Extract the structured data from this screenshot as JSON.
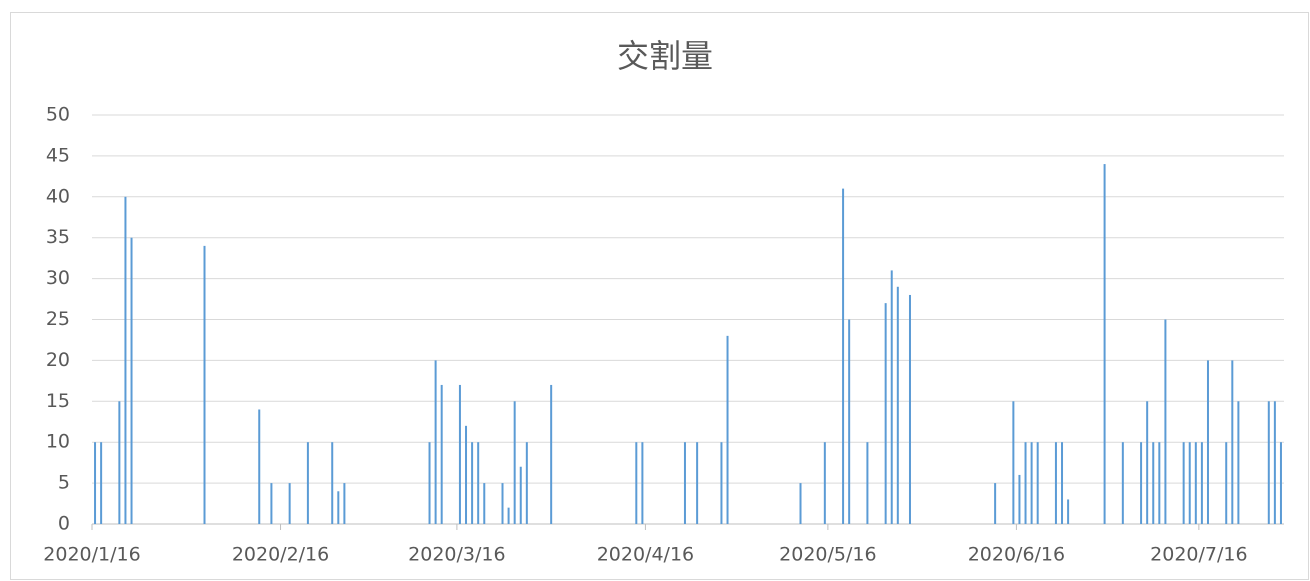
{
  "chart_data": {
    "type": "bar",
    "title": "交割量",
    "x": [
      "2020/1/16",
      "2020/1/17",
      "2020/1/20",
      "2020/1/21",
      "2020/1/22",
      "2020/2/3",
      "2020/2/12",
      "2020/2/14",
      "2020/2/17",
      "2020/2/20",
      "2020/2/24",
      "2020/2/25",
      "2020/2/26",
      "2020/3/11",
      "2020/3/12",
      "2020/3/13",
      "2020/3/16",
      "2020/3/17",
      "2020/3/18",
      "2020/3/19",
      "2020/3/20",
      "2020/3/23",
      "2020/3/24",
      "2020/3/25",
      "2020/3/26",
      "2020/3/27",
      "2020/3/31",
      "2020/4/14",
      "2020/4/15",
      "2020/4/22",
      "2020/4/24",
      "2020/4/28",
      "2020/4/29",
      "2020/5/11",
      "2020/5/15",
      "2020/5/18",
      "2020/5/19",
      "2020/5/22",
      "2020/5/25",
      "2020/5/26",
      "2020/5/27",
      "2020/5/29",
      "2020/6/12",
      "2020/6/15",
      "2020/6/16",
      "2020/6/17",
      "2020/6/18",
      "2020/6/19",
      "2020/6/22",
      "2020/6/23",
      "2020/6/24",
      "2020/6/30",
      "2020/7/3",
      "2020/7/6",
      "2020/7/7",
      "2020/7/8",
      "2020/7/9",
      "2020/7/10",
      "2020/7/13",
      "2020/7/14",
      "2020/7/15",
      "2020/7/16",
      "2020/7/17",
      "2020/7/20",
      "2020/7/21",
      "2020/7/22",
      "2020/7/27",
      "2020/7/28",
      "2020/7/29"
    ],
    "values": [
      10,
      10,
      15,
      40,
      35,
      34,
      14,
      5,
      5,
      10,
      10,
      4,
      5,
      10,
      20,
      17,
      17,
      12,
      10,
      10,
      5,
      5,
      2,
      15,
      7,
      10,
      17,
      10,
      10,
      10,
      10,
      10,
      23,
      5,
      10,
      41,
      25,
      10,
      27,
      31,
      29,
      28,
      5,
      15,
      6,
      10,
      10,
      10,
      10,
      10,
      3,
      44,
      10,
      10,
      15,
      10,
      10,
      25,
      10,
      10,
      10,
      10,
      20,
      10,
      20,
      15,
      15,
      15,
      10
    ],
    "color": "#5b9bd5",
    "xlim": [
      "2020/1/16",
      "2020/7/29"
    ],
    "xticks": [
      "2020/1/16",
      "2020/2/16",
      "2020/3/16",
      "2020/4/16",
      "2020/5/16",
      "2020/6/16",
      "2020/7/16"
    ],
    "ylim": [
      0,
      50
    ],
    "yticks": [
      0,
      5,
      10,
      15,
      20,
      25,
      30,
      35,
      40,
      45,
      50
    ],
    "grid": true
  }
}
